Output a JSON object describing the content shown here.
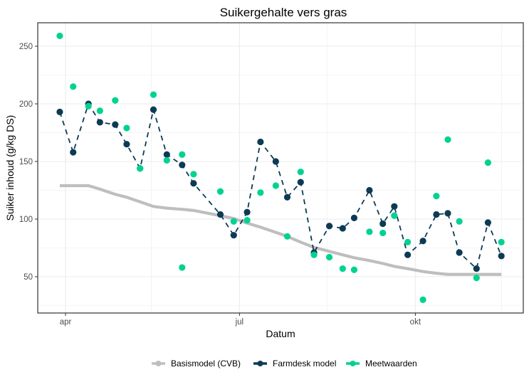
{
  "chart_data": {
    "type": "line",
    "title": "Suikergehalte vers gras",
    "xlabel": "Datum",
    "ylabel": "Suiker inhoud (g/kg DS)",
    "x_ticks": [
      {
        "label": "apr",
        "date": "04-01"
      },
      {
        "label": "jul",
        "date": "07-01"
      },
      {
        "label": "okt",
        "date": "10-01"
      }
    ],
    "x_minor_grid_dates": [
      "05-16",
      "08-16",
      "11-15"
    ],
    "xlim": [
      "03-26",
      "11-25"
    ],
    "y_ticks": [
      50,
      100,
      150,
      200,
      250
    ],
    "y_minor_grid": [
      25,
      75,
      125,
      175,
      225
    ],
    "ylim": [
      18,
      270
    ],
    "grid": true,
    "legend_position": "bottom",
    "x": [
      "03-29",
      "04-05",
      "04-13",
      "04-19",
      "04-27",
      "05-03",
      "05-10",
      "05-17",
      "05-24",
      "06-01",
      "06-07",
      "06-21",
      "06-28",
      "07-05",
      "07-12",
      "07-20",
      "07-26",
      "08-02",
      "08-09",
      "08-17",
      "08-24",
      "08-30",
      "09-07",
      "09-14",
      "09-20",
      "09-27",
      "10-05",
      "10-12",
      "10-18",
      "10-24",
      "11-02",
      "11-08",
      "11-15"
    ],
    "series": [
      {
        "name": "Basismodel (CVB)",
        "color": "#bebebe",
        "style": "solid-line",
        "values": [
          129,
          129,
          129,
          126,
          121.5,
          119,
          115,
          111,
          109.5,
          108.5,
          107.5,
          103,
          100.5,
          96.5,
          93,
          88.5,
          85,
          80,
          75.5,
          72,
          69,
          66.5,
          64,
          61.5,
          59,
          57,
          54.5,
          53,
          52,
          52,
          52,
          52,
          52
        ]
      },
      {
        "name": "Farmdesk model",
        "color": "#0d3a55",
        "style": "dashed-line-points",
        "values": [
          193,
          158,
          200,
          184,
          182,
          165,
          144,
          195,
          156,
          147,
          131,
          104,
          86,
          106,
          167,
          150,
          119,
          132,
          71,
          94,
          92,
          101,
          125,
          96,
          111,
          69,
          81,
          104,
          105,
          71,
          57,
          97,
          68
        ]
      },
      {
        "name": "Meetwaarden",
        "color": "#00d292",
        "style": "points",
        "values": [
          259,
          215,
          198,
          194,
          203,
          179,
          144,
          208,
          151,
          156,
          139,
          124,
          98,
          99,
          123,
          129,
          85,
          141,
          69,
          67,
          57,
          56,
          89,
          88,
          103,
          80,
          30,
          120,
          169,
          98,
          49,
          149,
          80
        ]
      }
    ],
    "extra_points": [
      {
        "series": "Meetwaarden",
        "x": "06-01",
        "value": 58
      }
    ]
  }
}
